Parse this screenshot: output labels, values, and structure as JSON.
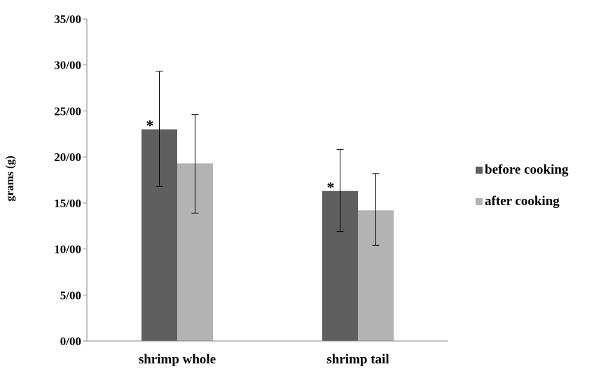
{
  "chart_data": {
    "type": "bar",
    "title": "",
    "xlabel": "",
    "ylabel": "grams (g)",
    "ylim": [
      0,
      35
    ],
    "yticks": [
      0,
      5,
      10,
      15,
      20,
      25,
      30,
      35
    ],
    "ytick_labels": [
      "0/00",
      "5/00",
      "10/00",
      "15/00",
      "20/00",
      "25/00",
      "30/00",
      "35/00"
    ],
    "categories": [
      "shrimp whole",
      "shrimp tail"
    ],
    "series": [
      {
        "name": "before cooking",
        "color": "#5f5f5f",
        "values": [
          23.0,
          16.3
        ],
        "error_low": [
          16.8,
          11.9
        ],
        "error_high": [
          29.3,
          20.8
        ],
        "annotations": [
          "*",
          "*"
        ]
      },
      {
        "name": "after cooking",
        "color": "#b3b3b3",
        "values": [
          19.3,
          14.2
        ],
        "error_low": [
          13.9,
          10.4
        ],
        "error_high": [
          24.6,
          18.2
        ],
        "annotations": [
          "",
          ""
        ]
      }
    ],
    "grid": false,
    "legend": "right"
  }
}
